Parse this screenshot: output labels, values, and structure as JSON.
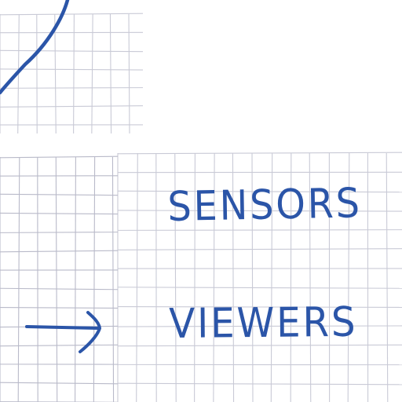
{
  "labels": {
    "sensors": "SENSORS",
    "viewers": "VIEWERS"
  },
  "colors": {
    "paper": "#ffffff",
    "grid_line": "#c9cad6",
    "grid_line_dark": "#b9bac9",
    "ink": "#2b55a8"
  },
  "icons": {
    "arrow": "right-arrow-icon",
    "curve": "curved-stroke"
  }
}
